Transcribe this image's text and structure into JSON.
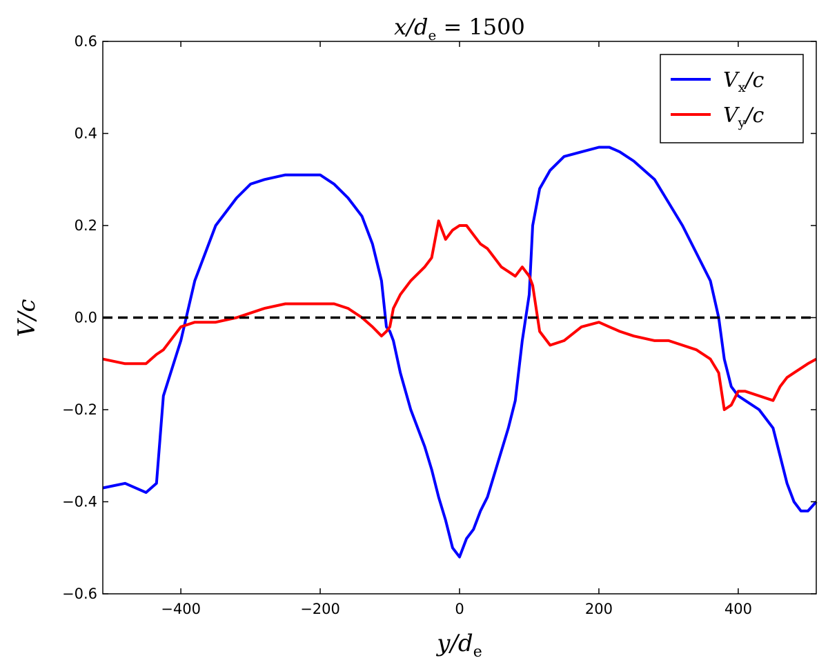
{
  "chart_data": {
    "type": "line",
    "title": {
      "lhs": "x/d",
      "sub": "e",
      "rhs": " = 1500"
    },
    "xlabel": {
      "main": "y/d",
      "sub": "e"
    },
    "ylabel": "V/c",
    "xlim": [
      -512,
      512
    ],
    "ylim": [
      -0.6,
      0.6
    ],
    "xticks": [
      -400,
      -200,
      0,
      200,
      400
    ],
    "xtick_labels": [
      "−400",
      "−200",
      "0",
      "200",
      "400"
    ],
    "yticks": [
      -0.6,
      -0.4,
      -0.2,
      0.0,
      0.2,
      0.4,
      0.6
    ],
    "ytick_labels": [
      "−0.6",
      "−0.4",
      "−0.2",
      "0.0",
      "0.2",
      "0.4",
      "0.6"
    ],
    "grid": false,
    "legend_position": "top-right",
    "reference_line": {
      "y": 0.0,
      "style": "dashed",
      "color": "#000000"
    },
    "x": [
      -512,
      -480,
      -450,
      -435,
      -425,
      -400,
      -380,
      -350,
      -320,
      -300,
      -280,
      -250,
      -220,
      -200,
      -180,
      -160,
      -140,
      -125,
      -112,
      -105,
      -100,
      -95,
      -85,
      -70,
      -50,
      -40,
      -30,
      -20,
      -10,
      0,
      10,
      20,
      30,
      40,
      50,
      60,
      70,
      80,
      90,
      100,
      105,
      115,
      130,
      150,
      175,
      200,
      215,
      230,
      250,
      280,
      300,
      320,
      340,
      360,
      372,
      380,
      390,
      400,
      410,
      430,
      450,
      460,
      470,
      480,
      490,
      500,
      512
    ],
    "series": [
      {
        "name": {
          "main": "V",
          "sub": "x",
          "tail": "/c"
        },
        "color": "#0000ff",
        "values": [
          -0.37,
          -0.36,
          -0.38,
          -0.36,
          -0.17,
          -0.05,
          0.08,
          0.2,
          0.26,
          0.29,
          0.3,
          0.31,
          0.31,
          0.31,
          0.29,
          0.26,
          0.22,
          0.16,
          0.08,
          -0.02,
          -0.03,
          -0.05,
          -0.12,
          -0.2,
          -0.28,
          -0.33,
          -0.39,
          -0.44,
          -0.5,
          -0.52,
          -0.48,
          -0.46,
          -0.42,
          -0.39,
          -0.34,
          -0.29,
          -0.24,
          -0.18,
          -0.05,
          0.05,
          0.2,
          0.28,
          0.32,
          0.35,
          0.36,
          0.37,
          0.37,
          0.36,
          0.34,
          0.3,
          0.25,
          0.2,
          0.14,
          0.08,
          0.0,
          -0.09,
          -0.15,
          -0.17,
          -0.18,
          -0.2,
          -0.24,
          -0.3,
          -0.36,
          -0.4,
          -0.42,
          -0.42,
          -0.4
        ]
      },
      {
        "name": {
          "main": "V",
          "sub": "y",
          "tail": "/c"
        },
        "color": "#ff0000",
        "values": [
          -0.09,
          -0.1,
          -0.1,
          -0.08,
          -0.07,
          -0.02,
          -0.01,
          -0.01,
          0.0,
          0.01,
          0.02,
          0.03,
          0.03,
          0.03,
          0.03,
          0.02,
          0.0,
          -0.02,
          -0.04,
          -0.03,
          -0.02,
          0.02,
          0.05,
          0.08,
          0.11,
          0.13,
          0.21,
          0.17,
          0.19,
          0.2,
          0.2,
          0.18,
          0.16,
          0.15,
          0.13,
          0.11,
          0.1,
          0.09,
          0.11,
          0.09,
          0.07,
          -0.03,
          -0.06,
          -0.05,
          -0.02,
          -0.01,
          -0.02,
          -0.03,
          -0.04,
          -0.05,
          -0.05,
          -0.06,
          -0.07,
          -0.09,
          -0.12,
          -0.2,
          -0.19,
          -0.16,
          -0.16,
          -0.17,
          -0.18,
          -0.15,
          -0.13,
          -0.12,
          -0.11,
          -0.1,
          -0.09
        ]
      }
    ]
  }
}
